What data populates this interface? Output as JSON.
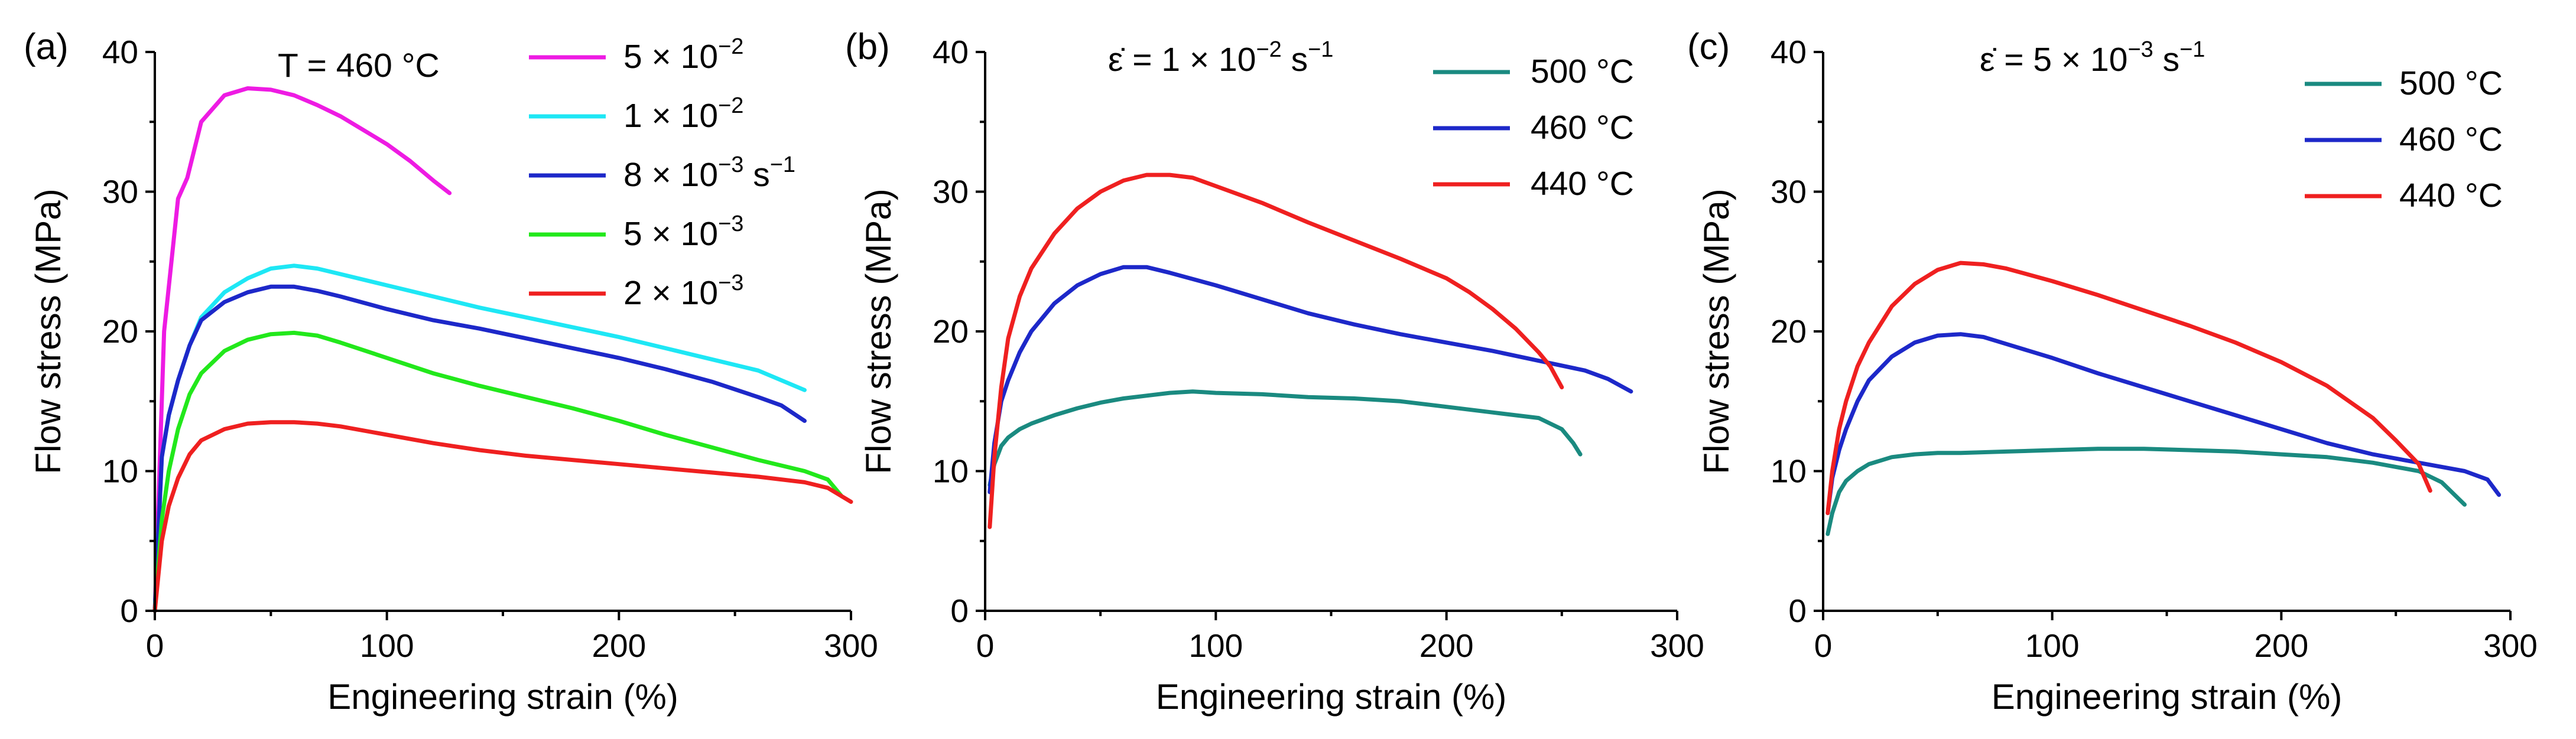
{
  "chart_data": [
    {
      "type": "line",
      "panel_label": "(a)",
      "annotation": {
        "prefix": "T = 460 ",
        "unit": "°C"
      },
      "xlabel": "Engineering strain (%)",
      "ylabel": "Flow stress (MPa)",
      "xlim": [
        0,
        300
      ],
      "ylim": [
        0,
        40
      ],
      "xticks": [
        0,
        100,
        200,
        300
      ],
      "yticks": [
        0,
        10,
        20,
        30,
        40
      ],
      "series": [
        {
          "name": "5 × 10",
          "sup": "−2",
          "unit": "",
          "color": "#ee1be3",
          "x": [
            0,
            4,
            10,
            14,
            20,
            30,
            40,
            50,
            60,
            70,
            80,
            90,
            100,
            110,
            120,
            127
          ],
          "y": [
            0,
            20,
            29.5,
            31,
            35,
            36.9,
            37.4,
            37.3,
            36.9,
            36.2,
            35.4,
            34.4,
            33.4,
            32.2,
            30.8,
            29.9
          ]
        },
        {
          "name": "1 × 10",
          "sup": "−2",
          "unit": "",
          "color": "#1ee7f5",
          "x": [
            0,
            3,
            6,
            10,
            15,
            20,
            30,
            40,
            50,
            60,
            70,
            80,
            100,
            120,
            140,
            160,
            180,
            200,
            220,
            240,
            260,
            280
          ],
          "y": [
            0,
            11,
            14,
            16.5,
            19,
            21,
            22.8,
            23.8,
            24.5,
            24.7,
            24.5,
            24.1,
            23.3,
            22.5,
            21.7,
            21,
            20.3,
            19.6,
            18.8,
            18,
            17.2,
            15.8
          ]
        },
        {
          "name": "8 × 10",
          "sup": "−3",
          "unit": " s−1",
          "color": "#1d28c9",
          "x": [
            0,
            3,
            6,
            10,
            15,
            20,
            30,
            40,
            50,
            60,
            70,
            80,
            100,
            120,
            140,
            160,
            180,
            200,
            220,
            240,
            260,
            270,
            280
          ],
          "y": [
            0,
            11,
            14,
            16.5,
            19,
            20.8,
            22.1,
            22.8,
            23.2,
            23.2,
            22.9,
            22.5,
            21.6,
            20.8,
            20.2,
            19.5,
            18.8,
            18.1,
            17.3,
            16.4,
            15.3,
            14.7,
            13.6
          ]
        },
        {
          "name": "5 × 10",
          "sup": "−3",
          "unit": "",
          "color": "#22e81b",
          "x": [
            0,
            3,
            6,
            10,
            15,
            20,
            30,
            40,
            50,
            60,
            70,
            80,
            100,
            120,
            140,
            160,
            180,
            200,
            220,
            240,
            260,
            280,
            290,
            296
          ],
          "y": [
            0,
            6.5,
            10,
            13,
            15.5,
            17,
            18.6,
            19.4,
            19.8,
            19.9,
            19.7,
            19.2,
            18.1,
            17,
            16.1,
            15.3,
            14.5,
            13.6,
            12.6,
            11.7,
            10.8,
            10,
            9.4,
            8.2
          ]
        },
        {
          "name": "2 × 10",
          "sup": "−3",
          "unit": "",
          "color": "#ef2020",
          "x": [
            0,
            3,
            6,
            10,
            15,
            20,
            30,
            40,
            50,
            60,
            70,
            80,
            100,
            120,
            140,
            160,
            180,
            200,
            220,
            240,
            260,
            280,
            290,
            300
          ],
          "y": [
            0,
            5,
            7.5,
            9.5,
            11.2,
            12.2,
            13,
            13.4,
            13.5,
            13.5,
            13.4,
            13.2,
            12.6,
            12,
            11.5,
            11.1,
            10.8,
            10.5,
            10.2,
            9.9,
            9.6,
            9.2,
            8.8,
            7.8
          ]
        }
      ]
    },
    {
      "type": "line",
      "panel_label": "(b)",
      "annotation": {
        "prefix": "ε̇ = 1 × 10",
        "sup": "−2",
        "unit": " s",
        "unit_sup": "−1"
      },
      "xlabel": "Engineering strain (%)",
      "ylabel": "Flow stress (MPa)",
      "xlim": [
        0,
        300
      ],
      "ylim": [
        0,
        40
      ],
      "xticks": [
        0,
        100,
        200,
        300
      ],
      "yticks": [
        0,
        10,
        20,
        30,
        40
      ],
      "series": [
        {
          "name": "500 ",
          "unit": "°C",
          "color": "#1a8a80",
          "x": [
            2,
            4,
            7,
            10,
            15,
            20,
            30,
            40,
            50,
            60,
            70,
            80,
            90,
            100,
            120,
            140,
            160,
            180,
            200,
            220,
            240,
            250,
            255,
            258
          ],
          "y": [
            9,
            10.5,
            11.8,
            12.4,
            13,
            13.4,
            14,
            14.5,
            14.9,
            15.2,
            15.4,
            15.6,
            15.7,
            15.6,
            15.5,
            15.3,
            15.2,
            15,
            14.6,
            14.2,
            13.8,
            13,
            12,
            11.2
          ]
        },
        {
          "name": "460 ",
          "unit": "°C",
          "color": "#1d28c9",
          "x": [
            2,
            4,
            7,
            10,
            15,
            20,
            30,
            40,
            50,
            60,
            70,
            80,
            100,
            120,
            140,
            160,
            180,
            200,
            220,
            240,
            260,
            270,
            280
          ],
          "y": [
            8.5,
            12,
            15,
            16.5,
            18.5,
            20,
            22,
            23.3,
            24.1,
            24.6,
            24.6,
            24.2,
            23.3,
            22.3,
            21.3,
            20.5,
            19.8,
            19.2,
            18.6,
            17.9,
            17.2,
            16.6,
            15.7
          ]
        },
        {
          "name": "440 ",
          "unit": "°C",
          "color": "#ef2020",
          "x": [
            2,
            4,
            7,
            10,
            15,
            20,
            30,
            40,
            50,
            60,
            70,
            80,
            90,
            100,
            120,
            140,
            160,
            180,
            200,
            210,
            220,
            230,
            240,
            245,
            250
          ],
          "y": [
            6,
            11,
            16,
            19.5,
            22.5,
            24.5,
            27,
            28.8,
            30,
            30.8,
            31.2,
            31.2,
            31,
            30.4,
            29.2,
            27.8,
            26.5,
            25.2,
            23.8,
            22.8,
            21.6,
            20.2,
            18.5,
            17.5,
            16
          ]
        }
      ]
    },
    {
      "type": "line",
      "panel_label": "(c)",
      "annotation": {
        "prefix": "ε̇ = 5 × 10",
        "sup": "−3",
        "unit": " s",
        "unit_sup": "−1"
      },
      "xlabel": "Engineering strain (%)",
      "ylabel": "Flow stress (MPa)",
      "xlim": [
        0,
        300
      ],
      "ylim": [
        0,
        40
      ],
      "xticks": [
        0,
        100,
        200,
        300
      ],
      "yticks": [
        0,
        10,
        20,
        30,
        40
      ],
      "series": [
        {
          "name": "500 ",
          "unit": "°C",
          "color": "#1a8a80",
          "x": [
            2,
            4,
            7,
            10,
            15,
            20,
            30,
            40,
            50,
            60,
            80,
            100,
            120,
            140,
            160,
            180,
            200,
            220,
            240,
            260,
            270,
            280
          ],
          "y": [
            5.5,
            7,
            8.5,
            9.3,
            10,
            10.5,
            11,
            11.2,
            11.3,
            11.3,
            11.4,
            11.5,
            11.6,
            11.6,
            11.5,
            11.4,
            11.2,
            11,
            10.6,
            10,
            9.2,
            7.6
          ]
        },
        {
          "name": "460 ",
          "unit": "°C",
          "color": "#1d28c9",
          "x": [
            2,
            4,
            7,
            10,
            15,
            20,
            30,
            40,
            50,
            60,
            70,
            80,
            100,
            120,
            140,
            160,
            180,
            200,
            220,
            240,
            260,
            280,
            290,
            295
          ],
          "y": [
            7,
            9.5,
            11.5,
            13,
            15,
            16.5,
            18.2,
            19.2,
            19.7,
            19.8,
            19.6,
            19.1,
            18.1,
            17,
            16,
            15,
            14,
            13,
            12,
            11.2,
            10.6,
            10,
            9.4,
            8.3
          ]
        },
        {
          "name": "440 ",
          "unit": "°C",
          "color": "#ef2020",
          "x": [
            2,
            4,
            7,
            10,
            15,
            20,
            30,
            40,
            50,
            60,
            70,
            80,
            100,
            120,
            140,
            160,
            180,
            200,
            220,
            240,
            250,
            260,
            265
          ],
          "y": [
            7,
            10,
            13,
            15,
            17.5,
            19.2,
            21.8,
            23.4,
            24.4,
            24.9,
            24.8,
            24.5,
            23.6,
            22.6,
            21.5,
            20.4,
            19.2,
            17.8,
            16.1,
            13.8,
            12.2,
            10.5,
            8.6
          ]
        }
      ]
    }
  ]
}
